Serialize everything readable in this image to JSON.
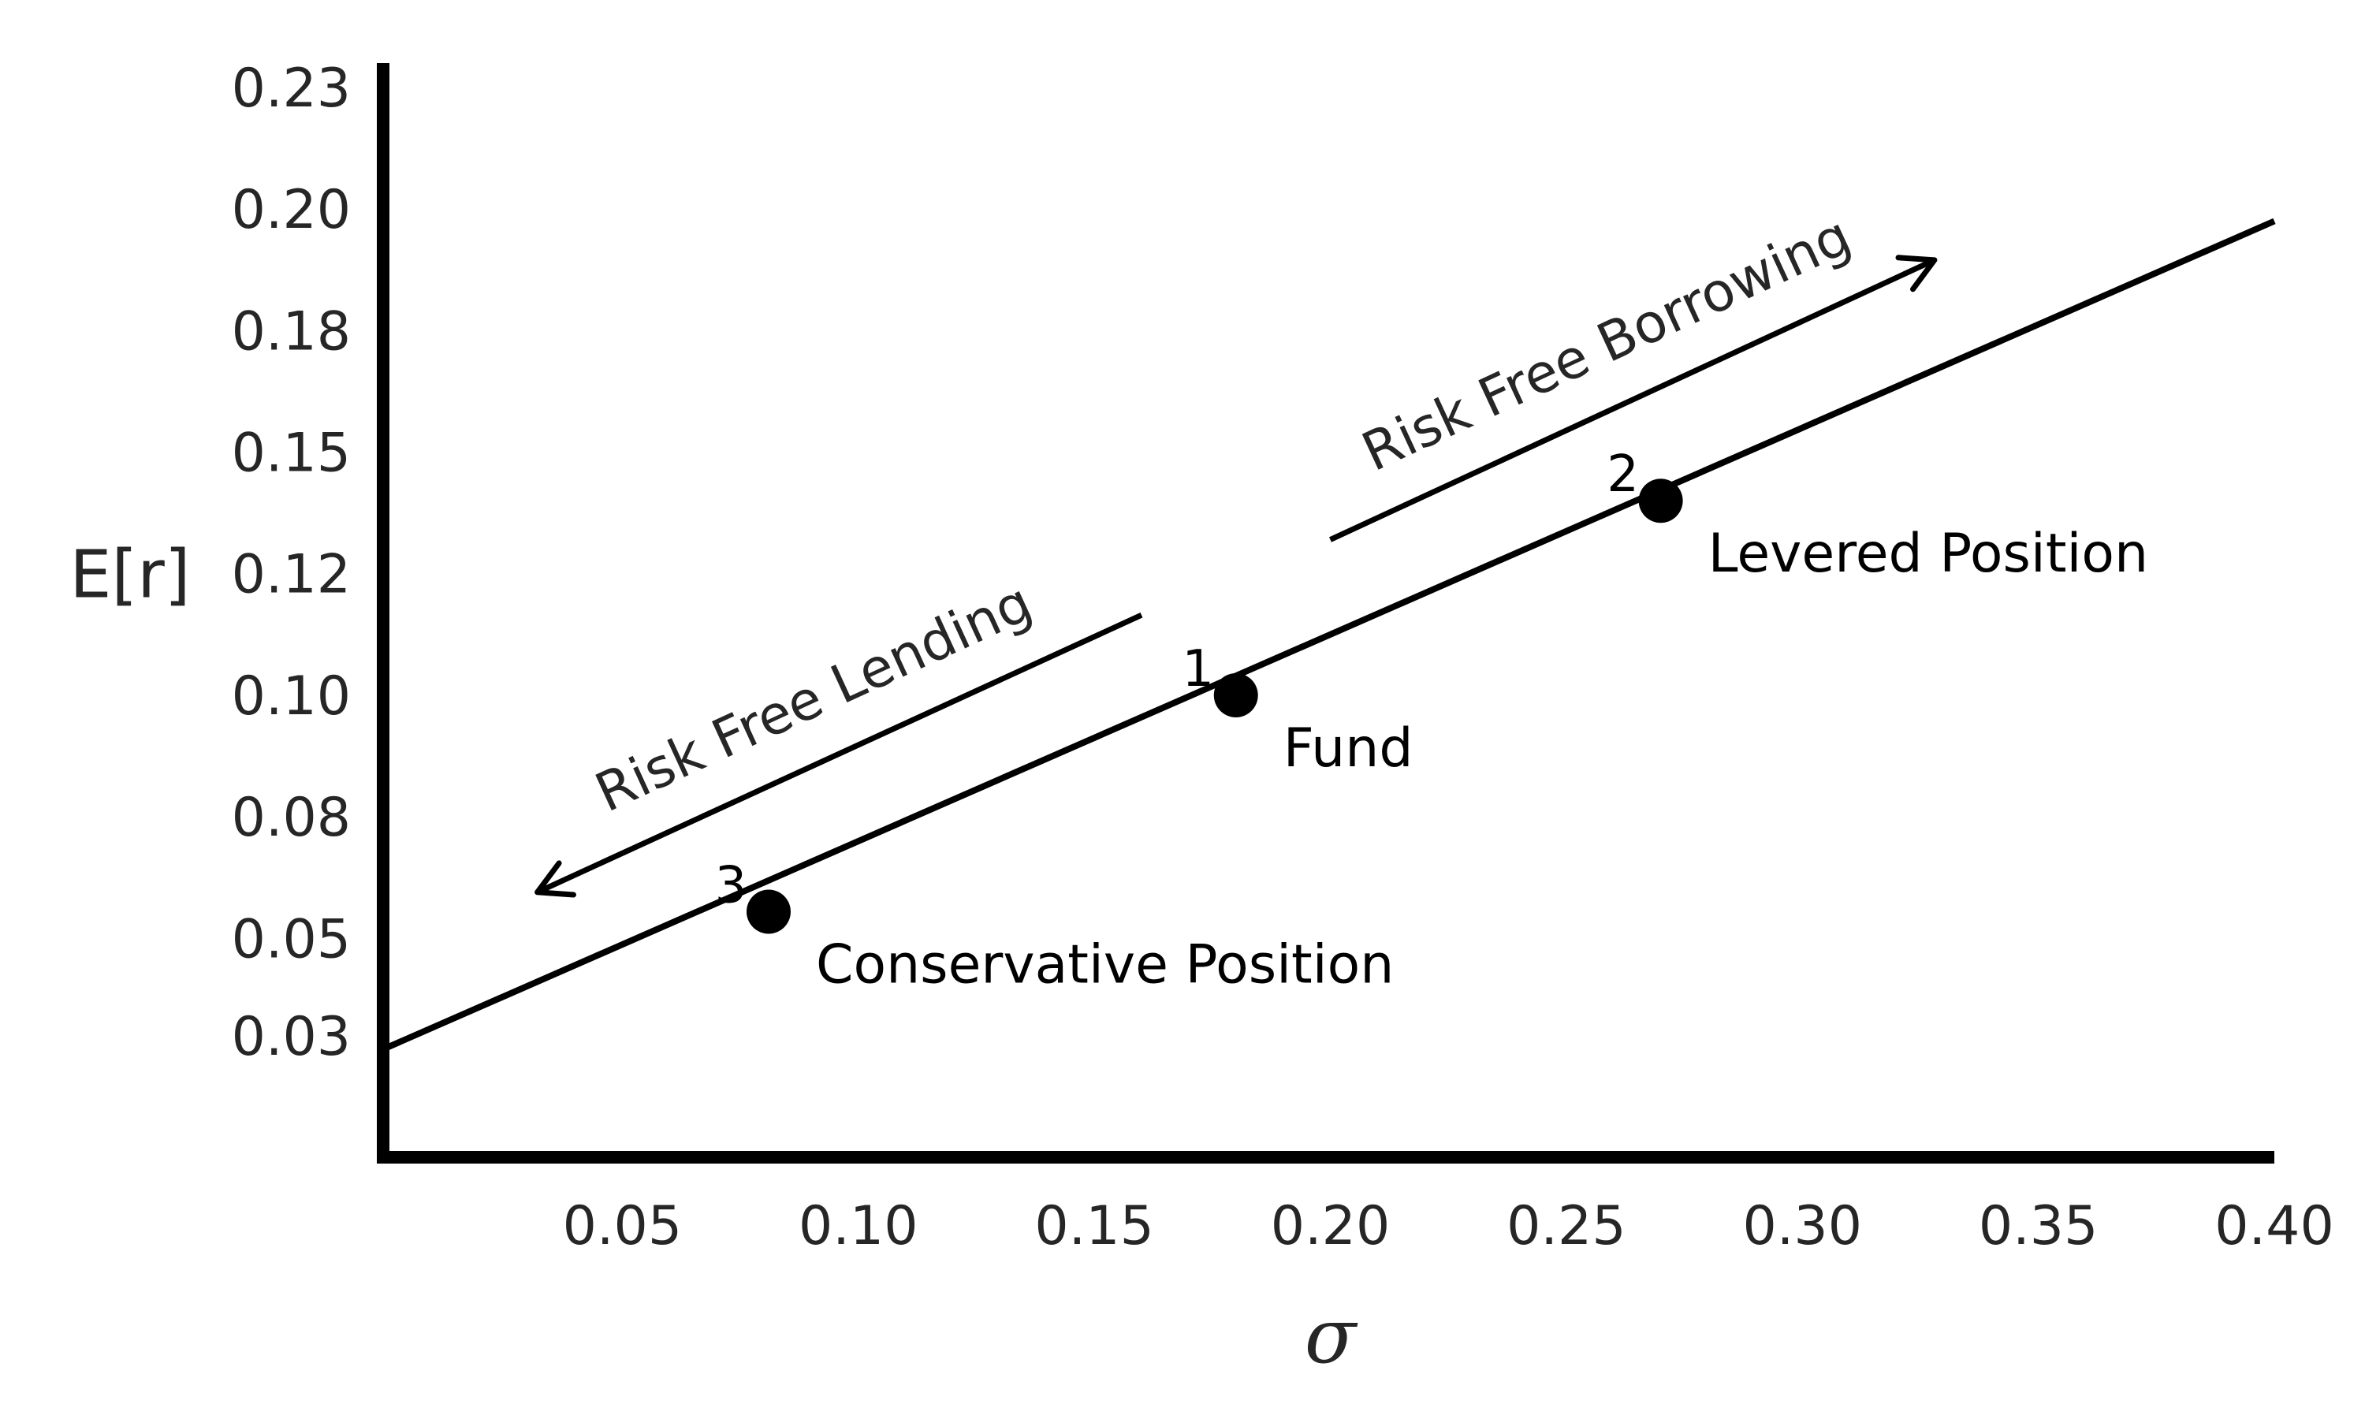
{
  "chart_data": {
    "type": "line",
    "xlabel": "σ",
    "ylabel": "E[r]",
    "xlim": [
      0.0,
      0.4
    ],
    "ylim": [
      0.005,
      0.23
    ],
    "x_ticks": [
      "0.05",
      "0.10",
      "0.15",
      "0.20",
      "0.25",
      "0.30",
      "0.35",
      "0.40"
    ],
    "x_tick_values": [
      0.05,
      0.1,
      0.15,
      0.2,
      0.25,
      0.3,
      0.35,
      0.4
    ],
    "y_ticks": [
      "0.03",
      "0.05",
      "0.08",
      "0.10",
      "0.12",
      "0.15",
      "0.18",
      "0.20",
      "0.23"
    ],
    "y_tick_values": [
      0.03,
      0.05,
      0.075,
      0.1,
      0.125,
      0.15,
      0.175,
      0.2,
      0.225
    ],
    "grid": false,
    "line": {
      "x": [
        0.0,
        0.4
      ],
      "y": [
        0.0275,
        0.1975
      ]
    },
    "points": [
      {
        "num": "1",
        "label": "Fund",
        "x": 0.18,
        "y": 0.1
      },
      {
        "num": "2",
        "label": "Levered Position",
        "x": 0.27,
        "y": 0.14
      },
      {
        "num": "3",
        "label": "Conservative Position",
        "x": 0.081,
        "y": 0.0555
      }
    ],
    "arrows": [
      {
        "label": "Risk Free Lending",
        "from": [
          0.16,
          0.1165
        ],
        "to": [
          0.032,
          0.0595
        ]
      },
      {
        "label": "Risk Free Borrowing",
        "from": [
          0.2,
          0.132
        ],
        "to": [
          0.328,
          0.1895
        ]
      }
    ]
  }
}
